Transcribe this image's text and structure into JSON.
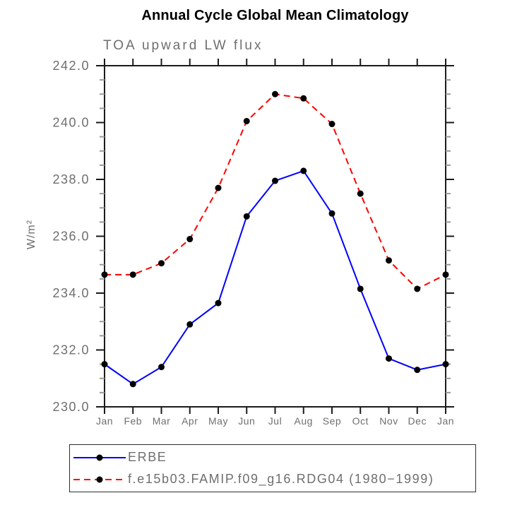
{
  "chart_data": {
    "type": "line",
    "title": "Annual Cycle Global Mean Climatology",
    "subtitle": "TOA upward LW flux",
    "ylabel": "W/m²",
    "xlabel": "",
    "categories": [
      "Jan",
      "Feb",
      "Mar",
      "Apr",
      "May",
      "Jun",
      "Jul",
      "Aug",
      "Sep",
      "Oct",
      "Nov",
      "Dec",
      "Jan"
    ],
    "ylim": [
      230.0,
      242.0
    ],
    "ytick_major_step": 2.0,
    "ytick_minor_step": 0.5,
    "ytick_labels": [
      "230.0",
      "232.0",
      "234.0",
      "236.0",
      "238.0",
      "240.0",
      "242.0"
    ],
    "grid": false,
    "legend_position": "bottom-left",
    "series": [
      {
        "name": "ERBE",
        "line_color": "#0000ff",
        "line_style": "solid",
        "marker": "filled-circle",
        "marker_color": "#000000",
        "values": [
          231.5,
          230.8,
          231.4,
          232.9,
          233.65,
          236.7,
          237.95,
          238.3,
          236.8,
          234.15,
          231.7,
          231.3,
          231.5
        ]
      },
      {
        "name": "f.e15b03.FAMIP.f09_g16.RDG04 (1980−1999)",
        "line_color": "#ff0000",
        "line_style": "dashed",
        "marker": "filled-circle",
        "marker_color": "#000000",
        "values": [
          234.65,
          234.65,
          235.05,
          235.9,
          237.7,
          240.05,
          241.0,
          240.85,
          239.95,
          237.5,
          235.15,
          234.15,
          234.65
        ]
      }
    ]
  },
  "colors": {
    "background": "#ffffff",
    "axis": "#1a1a1a",
    "minor_tick": "#9a9a9a",
    "label_text": "#6f6f6f",
    "title_text": "#000000"
  }
}
